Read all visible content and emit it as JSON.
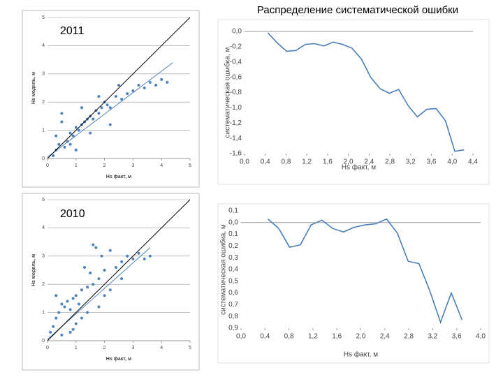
{
  "title": "Распределение систематической ошибки",
  "chart_data": [
    {
      "type": "scatter",
      "annotation": "2011",
      "xlabel": "Hs факт, м",
      "ylabel": "Hs модель, м",
      "xlim": [
        0,
        5
      ],
      "ylim": [
        0,
        5
      ],
      "xticks": [
        0,
        1,
        2,
        3,
        4,
        5
      ],
      "yticks": [
        0,
        1,
        2,
        3,
        4,
        5
      ],
      "grid": true,
      "series": [
        {
          "type": "scatter",
          "color": "#4f81bd",
          "x": [
            0.2,
            0.3,
            0.4,
            0.5,
            0.6,
            0.7,
            0.8,
            0.9,
            1.0,
            1.1,
            1.2,
            1.3,
            1.4,
            1.5,
            1.6,
            1.7,
            1.8,
            1.9,
            2.0,
            2.1,
            2.2,
            2.4,
            2.6,
            2.8,
            3.0,
            3.2,
            3.4,
            3.6,
            3.8,
            4.0,
            4.2,
            0.5,
            0.8,
            1.2,
            1.5,
            1.8,
            2.2,
            2.5,
            0.3,
            1.0
          ],
          "values": [
            0.1,
            0.3,
            0.5,
            1.6,
            0.4,
            0.6,
            0.9,
            0.8,
            1.1,
            1.0,
            1.2,
            1.3,
            1.4,
            1.5,
            1.4,
            1.7,
            1.6,
            1.8,
            2.0,
            1.9,
            1.8,
            2.2,
            2.1,
            2.3,
            2.4,
            2.6,
            2.5,
            2.7,
            2.6,
            2.8,
            2.7,
            1.3,
            0.5,
            1.8,
            0.9,
            2.2,
            1.2,
            2.6,
            0.8,
            0.3
          ]
        },
        {
          "type": "line",
          "color": "#4f81bd",
          "x": [
            0,
            4.4
          ],
          "values": [
            0.05,
            3.4
          ]
        },
        {
          "type": "line",
          "color": "#000000",
          "x": [
            0,
            5
          ],
          "values": [
            0,
            5
          ]
        }
      ]
    },
    {
      "type": "line",
      "xlabel": "Hs факт, м",
      "ylabel": "систематическая ошибка, м",
      "xlim": [
        0,
        4.4
      ],
      "ylim": [
        -1.6,
        0
      ],
      "xticks": [
        {
          "value": 0,
          "label": "0,0"
        },
        {
          "value": 0.4,
          "label": "0,4"
        },
        {
          "value": 0.8,
          "label": "0,8"
        },
        {
          "value": 1.2,
          "label": "1,2"
        },
        {
          "value": 1.6,
          "label": "1,6"
        },
        {
          "value": 2.0,
          "label": "2,0"
        },
        {
          "value": 2.4,
          "label": "2,4"
        },
        {
          "value": 2.8,
          "label": "2,8"
        },
        {
          "value": 3.2,
          "label": "3,2"
        },
        {
          "value": 3.6,
          "label": "3,6"
        },
        {
          "value": 4.0,
          "label": "4,0"
        },
        {
          "value": 4.4,
          "label": "4,4"
        }
      ],
      "yticks": [
        {
          "value": 0,
          "label": "0,0"
        },
        {
          "value": -0.2,
          "label": "-0,2"
        },
        {
          "value": -0.4,
          "label": "-0,4"
        },
        {
          "value": -0.6,
          "label": "-0,6"
        },
        {
          "value": -0.8,
          "label": "-0,8"
        },
        {
          "value": -1.0,
          "label": "-1,0"
        },
        {
          "value": -1.2,
          "label": "-1,2"
        },
        {
          "value": -1.4,
          "label": "-1,4"
        },
        {
          "value": -1.6,
          "label": "-1,6"
        }
      ],
      "series": [
        {
          "type": "line",
          "color": "#4a7ebb",
          "x": [
            0.45,
            0.63,
            0.81,
            0.99,
            1.17,
            1.35,
            1.53,
            1.71,
            1.89,
            2.07,
            2.25,
            2.43,
            2.61,
            2.79,
            2.97,
            3.15,
            3.33,
            3.51,
            3.69,
            3.87,
            4.05,
            4.23
          ],
          "values": [
            -0.02,
            -0.15,
            -0.26,
            -0.25,
            -0.17,
            -0.16,
            -0.19,
            -0.14,
            -0.17,
            -0.22,
            -0.36,
            -0.6,
            -0.75,
            -0.81,
            -0.76,
            -0.97,
            -1.12,
            -1.02,
            -1.01,
            -1.17,
            -1.57,
            -1.55
          ]
        }
      ]
    },
    {
      "type": "line",
      "xlabel": "Hs факт, м",
      "ylabel": "систематическая ошибка, м",
      "xlim": [
        0,
        4.0
      ],
      "ylim": [
        -0.9,
        0.1
      ],
      "xticks": [
        {
          "value": 0,
          "label": "0,0"
        },
        {
          "value": 0.4,
          "label": "0,4"
        },
        {
          "value": 0.8,
          "label": "0,8"
        },
        {
          "value": 1.2,
          "label": "1,2"
        },
        {
          "value": 1.6,
          "label": "1,6"
        },
        {
          "value": 2.0,
          "label": "2,0"
        },
        {
          "value": 2.4,
          "label": "2,4"
        },
        {
          "value": 2.8,
          "label": "2,8"
        },
        {
          "value": 3.2,
          "label": "3,2"
        },
        {
          "value": 3.6,
          "label": "3,6"
        },
        {
          "value": 4.0,
          "label": "4,0"
        }
      ],
      "yticks": [
        {
          "value": 0.1,
          "label": "0,1"
        },
        {
          "value": 0,
          "label": "0,0"
        },
        {
          "value": -0.1,
          "label": "0,1"
        },
        {
          "value": -0.2,
          "label": "0,2"
        },
        {
          "value": -0.3,
          "label": "0,3"
        },
        {
          "value": -0.4,
          "label": "0,4"
        },
        {
          "value": -0.5,
          "label": "0,5"
        },
        {
          "value": -0.6,
          "label": "0,6"
        },
        {
          "value": -0.7,
          "label": "0,7"
        },
        {
          "value": -0.8,
          "label": "0,8"
        },
        {
          "value": -0.9,
          "label": "0,9"
        }
      ],
      "series": [
        {
          "type": "line",
          "color": "#4a7ebb",
          "x": [
            0.45,
            0.63,
            0.81,
            0.99,
            1.17,
            1.35,
            1.53,
            1.71,
            1.89,
            2.07,
            2.25,
            2.43,
            2.61,
            2.79,
            2.97,
            3.15,
            3.33,
            3.51,
            3.69
          ],
          "values": [
            0.03,
            -0.05,
            -0.21,
            -0.19,
            -0.02,
            0.02,
            -0.05,
            -0.08,
            -0.04,
            -0.02,
            -0.01,
            0.03,
            -0.09,
            -0.33,
            -0.35,
            -0.58,
            -0.85,
            -0.6,
            -0.83
          ]
        }
      ]
    },
    {
      "type": "scatter",
      "annotation": "2010",
      "xlabel": "Hs факт, м",
      "ylabel": "Hs модель, м",
      "xlim": [
        0,
        5
      ],
      "ylim": [
        0,
        5
      ],
      "xticks": [
        0,
        1,
        2,
        3,
        4,
        5
      ],
      "yticks": [
        0,
        1,
        2,
        3,
        4,
        5
      ],
      "grid": true,
      "series": [
        {
          "type": "scatter",
          "color": "#4f81bd",
          "x": [
            0.1,
            0.2,
            0.3,
            0.4,
            0.5,
            0.6,
            0.7,
            0.8,
            0.9,
            1.0,
            1.1,
            1.2,
            1.3,
            1.4,
            1.5,
            1.6,
            1.7,
            1.8,
            1.9,
            2.0,
            2.2,
            2.4,
            2.6,
            2.8,
            3.0,
            3.2,
            3.4,
            3.6,
            0.8,
            1.0,
            1.4,
            1.8,
            2.2,
            2.6,
            0.5,
            1.2,
            1.6,
            2.0,
            0.3,
            0.9
          ],
          "values": [
            0.3,
            0.5,
            0.8,
            1.0,
            1.3,
            1.2,
            1.4,
            1.1,
            1.5,
            1.6,
            1.3,
            1.8,
            2.6,
            1.9,
            2.4,
            2.0,
            3.3,
            2.2,
            3.0,
            2.5,
            3.2,
            2.6,
            2.8,
            3.0,
            2.9,
            3.1,
            2.9,
            3.0,
            0.3,
            0.6,
            1.0,
            1.2,
            1.8,
            2.2,
            0.2,
            0.8,
            3.4,
            1.6,
            1.6,
            0.4
          ]
        },
        {
          "type": "line",
          "color": "#4f81bd",
          "x": [
            0,
            3.6
          ],
          "values": [
            0.05,
            3.3
          ]
        },
        {
          "type": "line",
          "color": "#000000",
          "x": [
            0,
            5
          ],
          "values": [
            0,
            5
          ]
        }
      ]
    }
  ]
}
